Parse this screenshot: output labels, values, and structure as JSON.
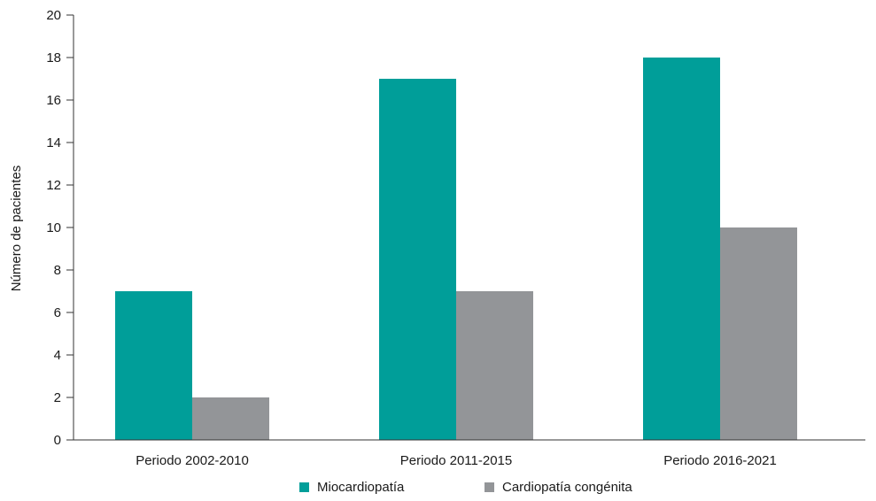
{
  "chart_data": {
    "type": "bar",
    "title": "",
    "xlabel": "",
    "ylabel": "Número de pacientes",
    "ylim": [
      0,
      20
    ],
    "yticks": [
      0,
      2,
      4,
      6,
      8,
      10,
      12,
      14,
      16,
      18,
      20
    ],
    "grid": false,
    "legend_position": "bottom",
    "categories": [
      "Periodo 2002-2010",
      "Periodo 2011-2015",
      "Periodo 2016-2021"
    ],
    "series": [
      {
        "name": "Miocardiopatía",
        "color": "#009e99",
        "values": [
          7,
          17,
          18
        ]
      },
      {
        "name": "Cardiopatía congénita",
        "color": "#939598",
        "values": [
          2,
          7,
          10
        ]
      }
    ]
  }
}
